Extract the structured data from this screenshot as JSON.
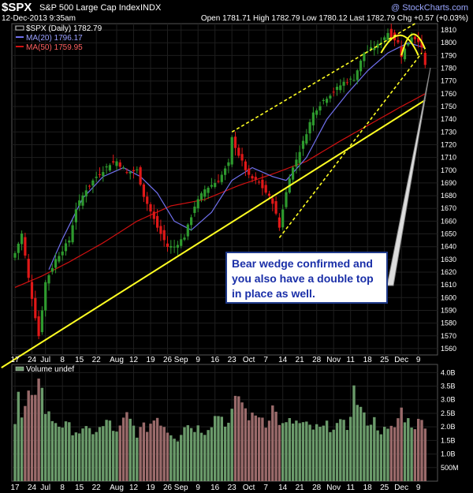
{
  "header": {
    "symbol": "$SPX",
    "name": "S&P 500 Large Cap Index",
    "exchange": "INDX",
    "date": "12-Dec-2013 9:35am",
    "quote": "Open 1781.71  High 1782.79  Low 1780.12  Last 1782.79  Chg +0.57 (+0.03%)",
    "watermark": "@ StockCharts.com"
  },
  "legend": {
    "price": "$SPX (Daily) 1782.79",
    "ma20": "MA(20) 1796.17",
    "ma50": "MA(50) 1759.95",
    "volume": "Volume undef"
  },
  "callout": {
    "text": "Bear wedge confirmed and you also have a double top in place as well."
  },
  "colors": {
    "up": "#2e9a2e",
    "down": "#e01818",
    "ma20": "#7070ee",
    "ma50": "#d01010",
    "trend": "#ffff22",
    "grid": "#1e1e1e",
    "vol_up": "#6a9a6a",
    "vol_down": "#9a6a6a",
    "callout_text": "#1a2fa8"
  },
  "chart_data": {
    "type": "candlestick",
    "y_ticks": [
      1560,
      1570,
      1580,
      1590,
      1600,
      1610,
      1620,
      1630,
      1640,
      1650,
      1660,
      1670,
      1680,
      1690,
      1700,
      1710,
      1720,
      1730,
      1740,
      1750,
      1760,
      1770,
      1780,
      1790,
      1800,
      1810
    ],
    "ylim": [
      1555,
      1815
    ],
    "vol_ticks": [
      "500M",
      "1.0B",
      "1.5B",
      "2.0B",
      "2.5B",
      "3.0B",
      "3.5B",
      "4.0B"
    ],
    "vol_ylim": [
      0,
      4.3
    ],
    "x_tick_labels": [
      "17",
      "24",
      "Jul",
      "8",
      "15",
      "22",
      "Aug",
      "12",
      "19",
      "26",
      "Sep",
      "9",
      "16",
      "23",
      "Oct",
      "7",
      "14",
      "21",
      "28",
      "Nov",
      "11",
      "18",
      "25",
      "Dec",
      "9"
    ],
    "x_tick_index": [
      0,
      5,
      9,
      14,
      19,
      24,
      30,
      35,
      40,
      45,
      49,
      54,
      59,
      64,
      69,
      74,
      79,
      84,
      89,
      94,
      99,
      104,
      109,
      114,
      119
    ],
    "close_anchors": [
      [
        0,
        1635
      ],
      [
        2,
        1650
      ],
      [
        4,
        1615
      ],
      [
        6,
        1585
      ],
      [
        7,
        1570
      ],
      [
        9,
        1612
      ],
      [
        12,
        1630
      ],
      [
        16,
        1645
      ],
      [
        18,
        1670
      ],
      [
        21,
        1685
      ],
      [
        24,
        1695
      ],
      [
        28,
        1705
      ],
      [
        30,
        1707
      ],
      [
        33,
        1698
      ],
      [
        36,
        1700
      ],
      [
        38,
        1680
      ],
      [
        42,
        1655
      ],
      [
        45,
        1640
      ],
      [
        47,
        1640
      ],
      [
        50,
        1648
      ],
      [
        53,
        1672
      ],
      [
        56,
        1685
      ],
      [
        60,
        1692
      ],
      [
        63,
        1705
      ],
      [
        64,
        1725
      ],
      [
        66,
        1712
      ],
      [
        69,
        1695
      ],
      [
        72,
        1690
      ],
      [
        76,
        1675
      ],
      [
        78,
        1655
      ],
      [
        79,
        1670
      ],
      [
        81,
        1695
      ],
      [
        85,
        1722
      ],
      [
        88,
        1745
      ],
      [
        91,
        1755
      ],
      [
        94,
        1762
      ],
      [
        97,
        1769
      ],
      [
        100,
        1772
      ],
      [
        103,
        1792
      ],
      [
        107,
        1798
      ],
      [
        110,
        1808
      ],
      [
        113,
        1800
      ],
      [
        114,
        1790
      ],
      [
        117,
        1805
      ],
      [
        119,
        1802
      ],
      [
        120,
        1795
      ],
      [
        121,
        1782
      ]
    ],
    "ma20_anchors": [
      [
        10,
        1622
      ],
      [
        14,
        1646
      ],
      [
        20,
        1678
      ],
      [
        26,
        1695
      ],
      [
        32,
        1702
      ],
      [
        37,
        1695
      ],
      [
        42,
        1682
      ],
      [
        47,
        1660
      ],
      [
        52,
        1653
      ],
      [
        58,
        1667
      ],
      [
        64,
        1692
      ],
      [
        70,
        1702
      ],
      [
        76,
        1695
      ],
      [
        80,
        1692
      ],
      [
        86,
        1710
      ],
      [
        92,
        1740
      ],
      [
        98,
        1760
      ],
      [
        104,
        1778
      ],
      [
        110,
        1792
      ],
      [
        116,
        1800
      ],
      [
        121,
        1796
      ]
    ],
    "ma50_anchors": [
      [
        0,
        1608
      ],
      [
        8,
        1617
      ],
      [
        16,
        1628
      ],
      [
        26,
        1643
      ],
      [
        36,
        1660
      ],
      [
        46,
        1672
      ],
      [
        56,
        1677
      ],
      [
        66,
        1688
      ],
      [
        76,
        1697
      ],
      [
        86,
        1707
      ],
      [
        96,
        1723
      ],
      [
        106,
        1738
      ],
      [
        114,
        1750
      ],
      [
        121,
        1760
      ]
    ],
    "volume_anchors": [
      [
        0,
        2.1
      ],
      [
        1,
        3.1
      ],
      [
        2,
        2.3
      ],
      [
        3,
        2.6
      ],
      [
        4,
        3.0
      ],
      [
        5,
        2.9
      ],
      [
        6,
        3.4
      ],
      [
        7,
        4.1
      ],
      [
        8,
        3.3
      ],
      [
        9,
        2.6
      ],
      [
        10,
        2.4
      ],
      [
        12,
        2.2
      ],
      [
        15,
        2.0
      ],
      [
        20,
        1.8
      ],
      [
        25,
        1.9
      ],
      [
        28,
        2.2
      ],
      [
        30,
        1.7
      ],
      [
        33,
        2.4
      ],
      [
        36,
        1.8
      ],
      [
        39,
        2.0
      ],
      [
        42,
        2.4
      ],
      [
        45,
        1.9
      ],
      [
        48,
        1.6
      ],
      [
        50,
        2.1
      ],
      [
        53,
        2.0
      ],
      [
        56,
        1.9
      ],
      [
        60,
        2.5
      ],
      [
        63,
        2.1
      ],
      [
        66,
        3.2
      ],
      [
        68,
        2.6
      ],
      [
        70,
        2.3
      ],
      [
        72,
        2.5
      ],
      [
        74,
        2.2
      ],
      [
        76,
        2.7
      ],
      [
        79,
        2.0
      ],
      [
        82,
        2.2
      ],
      [
        86,
        2.0
      ],
      [
        90,
        1.9
      ],
      [
        94,
        2.1
      ],
      [
        98,
        2.0
      ],
      [
        100,
        3.3
      ],
      [
        103,
        2.3
      ],
      [
        106,
        2.2
      ],
      [
        108,
        1.9
      ],
      [
        110,
        1.8
      ],
      [
        112,
        2.0
      ],
      [
        114,
        2.6
      ],
      [
        116,
        2.2
      ],
      [
        118,
        2.1
      ],
      [
        121,
        2.2
      ]
    ],
    "trendlines": [
      {
        "name": "long-term-uptrend",
        "points": [
          [
            -4,
            1545
          ],
          [
            121,
            1755
          ]
        ],
        "dash": false
      },
      {
        "name": "wedge-upper",
        "points": [
          [
            64,
            1730
          ],
          [
            118,
            1815
          ]
        ],
        "dash": true
      },
      {
        "name": "wedge-lower",
        "points": [
          [
            78,
            1647
          ],
          [
            120,
            1792
          ]
        ],
        "dash": true
      }
    ],
    "double_top_arcs": [
      [
        108,
        1792,
        114,
        1812,
        119,
        1790
      ],
      [
        114,
        1790,
        117,
        1812,
        121,
        1795
      ]
    ]
  }
}
